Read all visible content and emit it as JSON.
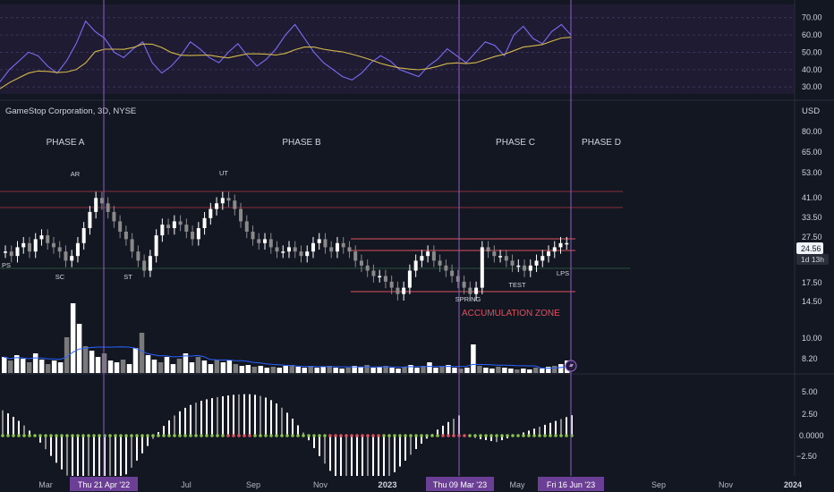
{
  "header": {
    "symbol_title": "GameStop Corporation, 3D, NYSE",
    "currency": "USD"
  },
  "colors": {
    "background": "#131722",
    "rsi_panel": "#1f1b33",
    "phase_line": "#8f5fc4",
    "resistance_line": "#8b2f3a",
    "zone_line": "#e0505f",
    "support_line": "#2a4f3a",
    "candle_up": "#ffffff",
    "candle_down": "#8a8a8a",
    "rsi_line": "#7b6cf6",
    "rsi_ma": "#d4b94a",
    "volume_ma": "#2962ff",
    "squeeze_on": "#e0505f",
    "squeeze_off": "#8bc34a",
    "price_badge": "#f0f3fa"
  },
  "rsi_axis": {
    "labels": [
      "70.00",
      "60.00",
      "50.00",
      "40.00",
      "30.00"
    ],
    "values": [
      70,
      60,
      50,
      40,
      30
    ],
    "range": [
      27,
      75
    ]
  },
  "price_axis": {
    "labels": [
      "80.00",
      "65.00",
      "53.00",
      "41.00",
      "33.50",
      "27.50",
      "21.50",
      "17.50",
      "14.50",
      "10.00",
      "8.20"
    ],
    "current_price": "24.56",
    "countdown": "1d 13h"
  },
  "momentum_axis": {
    "labels": [
      "5.00",
      "2.50",
      "0.0000",
      "−2.50"
    ]
  },
  "time_axis": {
    "labels": [
      "Mar",
      "Jul",
      "Sep",
      "Nov",
      "2023",
      "May",
      "Sep",
      "Nov",
      "2024"
    ],
    "highlighted": [
      "Thu 21 Apr '22",
      "Thu 09 Mar '23",
      "Fri 16 Jun '23"
    ]
  },
  "phases": [
    "PHASE A",
    "PHASE B",
    "PHASE C",
    "PHASE D"
  ],
  "events": [
    "PS",
    "SC",
    "AR",
    "ST",
    "UT",
    "SPRING",
    "TEST",
    "LPS"
  ],
  "zone_label": "ACCUMULATION ZONE",
  "chart_data": {
    "type": "candlestick",
    "title": "GameStop Corporation, 3D, NYSE",
    "ylabel": "USD",
    "price_range": [
      8,
      80
    ],
    "series": [
      {
        "name": "price_close",
        "values": [
          24,
          23,
          25,
          26,
          24,
          27,
          28,
          26,
          25,
          24,
          22,
          23,
          26,
          30,
          35,
          40,
          38,
          35,
          32,
          29,
          27,
          24,
          22,
          20,
          23,
          28,
          31,
          30,
          32,
          31,
          29,
          27,
          30,
          33,
          36,
          38,
          40,
          39,
          36,
          32,
          29,
          27,
          26,
          27,
          25,
          24,
          24,
          25,
          24,
          23,
          24,
          26,
          27,
          25,
          24,
          26,
          25,
          24,
          22,
          21,
          20,
          19,
          19,
          18,
          17,
          16,
          17,
          20,
          22,
          23,
          24,
          22,
          21,
          20,
          19,
          18,
          17,
          16,
          17,
          25,
          24,
          23,
          23,
          22,
          21,
          21,
          20,
          21,
          22,
          23,
          24,
          25,
          26,
          26
        ]
      },
      {
        "name": "RSI",
        "values": [
          33,
          40,
          45,
          50,
          48,
          42,
          38,
          45,
          55,
          68,
          62,
          58,
          50,
          47,
          52,
          56,
          44,
          38,
          42,
          48,
          56,
          52,
          47,
          44,
          50,
          55,
          48,
          42,
          46,
          52,
          60,
          66,
          58,
          50,
          44,
          40,
          36,
          34,
          38,
          44,
          48,
          45,
          40,
          38,
          36,
          42,
          46,
          52,
          48,
          44,
          50,
          56,
          54,
          48,
          60,
          65,
          58,
          55,
          62,
          66,
          60
        ]
      }
    ]
  }
}
